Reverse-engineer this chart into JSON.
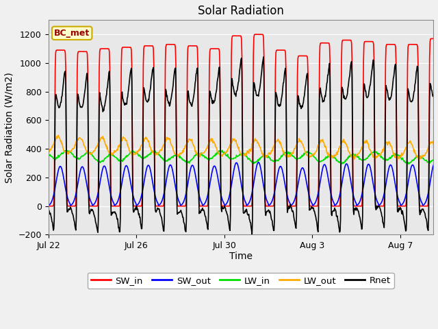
{
  "title": "Solar Radiation",
  "ylabel": "Solar Radiation (W/m2)",
  "xlabel": "Time",
  "ylim": [
    -200,
    1300
  ],
  "yticks": [
    -200,
    0,
    200,
    400,
    600,
    800,
    1000,
    1200
  ],
  "fig_bg_color": "#f0f0f0",
  "plot_bg_color": "#e8e8e8",
  "legend_label": "BC_met",
  "series": {
    "SW_in": {
      "color": "#ff0000",
      "lw": 1.2
    },
    "SW_out": {
      "color": "#0000ff",
      "lw": 1.2
    },
    "LW_in": {
      "color": "#00dd00",
      "lw": 1.2
    },
    "LW_out": {
      "color": "#ffaa00",
      "lw": 1.2
    },
    "Rnet": {
      "color": "#000000",
      "lw": 1.2
    }
  },
  "xtick_labels": [
    "Jul 22",
    "Jul 26",
    "Jul 30",
    "Aug 3",
    "Aug 7"
  ],
  "xtick_positions": [
    0,
    4,
    8,
    12,
    16
  ],
  "num_days": 18,
  "title_fontsize": 12,
  "label_fontsize": 10,
  "tick_fontsize": 9
}
